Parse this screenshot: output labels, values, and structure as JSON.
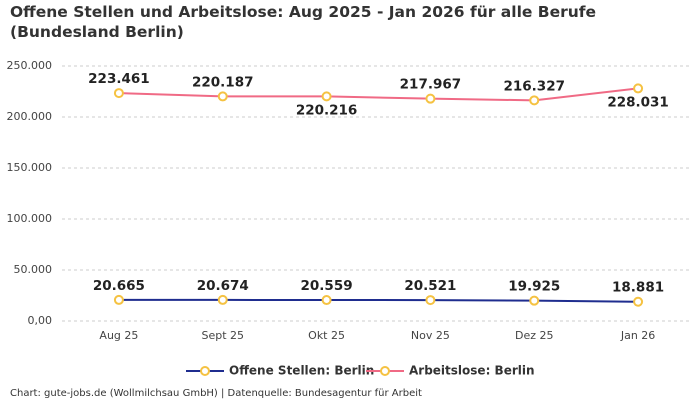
{
  "chart_data": {
    "type": "line",
    "title": "Offene Stellen und Arbeitslose: Aug 2025 - Jan 2026 für alle Berufe (Bundesland Berlin)",
    "categories": [
      "Aug 25",
      "Sept 25",
      "Okt 25",
      "Nov 25",
      "Dez 25",
      "Jan 26"
    ],
    "series": [
      {
        "name": "Offene Stellen: Berlin",
        "color": "#1f2d8f",
        "values": [
          20665,
          20674,
          20559,
          20521,
          19925,
          18881
        ],
        "value_labels": [
          "20.665",
          "20.674",
          "20.559",
          "20.521",
          "19.925",
          "18.881"
        ]
      },
      {
        "name": "Arbeitslose: Berlin",
        "color": "#f06a85",
        "values": [
          223461,
          220187,
          220216,
          217967,
          216327,
          228031
        ],
        "value_labels": [
          "223.461",
          "220.187",
          "220.216",
          "217.967",
          "216.327",
          "228.031"
        ]
      }
    ],
    "marker_color": "#f5c242",
    "ylim": [
      0,
      250000
    ],
    "yticks": [
      {
        "value": 0,
        "label": "0,00"
      },
      {
        "value": 50000,
        "label": "50.000"
      },
      {
        "value": 100000,
        "label": "100.000"
      },
      {
        "value": 150000,
        "label": "150.000"
      },
      {
        "value": 200000,
        "label": "200.000"
      },
      {
        "value": 250000,
        "label": "250.000"
      }
    ],
    "grid": true,
    "footer": "Chart: gute-jobs.de (Wollmilchsau GmbH) | Datenquelle: Bundesagentur für Arbeit"
  }
}
